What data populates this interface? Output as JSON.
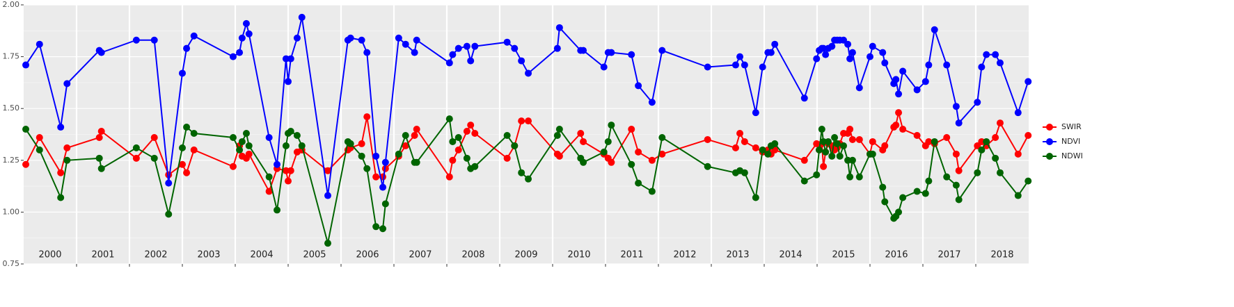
{
  "chart_data": {
    "type": "line",
    "x": [
      2000.04,
      2000.3,
      2000.7,
      2000.82,
      2001.43,
      2001.47,
      2002.13,
      2002.47,
      2002.74,
      2003.0,
      2003.08,
      2003.22,
      2003.96,
      2004.08,
      2004.13,
      2004.21,
      2004.26,
      2004.64,
      2004.79,
      2004.96,
      2005.0,
      2005.05,
      2005.17,
      2005.26,
      2005.75,
      2006.13,
      2006.18,
      2006.39,
      2006.49,
      2006.66,
      2006.79,
      2006.84,
      2007.09,
      2007.22,
      2007.39,
      2007.43,
      2008.05,
      2008.11,
      2008.22,
      2008.38,
      2008.45,
      2008.53,
      2009.14,
      2009.28,
      2009.41,
      2009.54,
      2010.09,
      2010.13,
      2010.53,
      2010.58,
      2010.97,
      2011.05,
      2011.11,
      2011.49,
      2011.62,
      2011.88,
      2012.07,
      2012.93,
      2013.46,
      2013.54,
      2013.63,
      2013.84,
      2013.97,
      2014.07,
      2014.13,
      2014.2,
      2014.76,
      2014.99,
      2015.04,
      2015.09,
      2015.12,
      2015.16,
      2015.21,
      2015.28,
      2015.33,
      2015.38,
      2015.43,
      2015.5,
      2015.58,
      2015.62,
      2015.67,
      2015.8,
      2016.0,
      2016.05,
      2016.24,
      2016.28,
      2016.45,
      2016.49,
      2016.54,
      2016.62,
      2016.89,
      2017.05,
      2017.11,
      2017.22,
      2017.45,
      2017.63,
      2017.68,
      2018.03,
      2018.11,
      2018.2,
      2018.37,
      2018.46,
      2018.8,
      2018.99
    ],
    "series": [
      {
        "name": "SWIR",
        "color": "#ff0000",
        "values": [
          1.23,
          1.36,
          1.19,
          1.31,
          1.36,
          1.39,
          1.26,
          1.36,
          1.18,
          1.23,
          1.19,
          1.3,
          1.22,
          1.32,
          1.27,
          1.26,
          1.28,
          1.1,
          1.21,
          1.2,
          1.15,
          1.2,
          1.29,
          1.3,
          1.2,
          1.3,
          1.31,
          1.33,
          1.46,
          1.17,
          1.17,
          1.21,
          1.27,
          1.32,
          1.37,
          1.4,
          1.17,
          1.25,
          1.3,
          1.39,
          1.42,
          1.38,
          1.26,
          1.32,
          1.44,
          1.44,
          1.28,
          1.27,
          1.38,
          1.34,
          1.28,
          1.26,
          1.24,
          1.4,
          1.29,
          1.25,
          1.28,
          1.35,
          1.31,
          1.38,
          1.34,
          1.31,
          1.29,
          1.3,
          1.28,
          1.3,
          1.25,
          1.33,
          1.3,
          1.33,
          1.22,
          1.29,
          1.33,
          1.32,
          1.3,
          1.31,
          1.33,
          1.38,
          1.38,
          1.4,
          1.35,
          1.35,
          1.28,
          1.34,
          1.3,
          1.32,
          1.41,
          1.42,
          1.48,
          1.4,
          1.37,
          1.32,
          1.34,
          1.33,
          1.36,
          1.28,
          1.2,
          1.32,
          1.34,
          1.32,
          1.36,
          1.43,
          1.28,
          1.37
        ]
      },
      {
        "name": "NDVI",
        "color": "#0000ff",
        "values": [
          1.71,
          1.81,
          1.41,
          1.62,
          1.78,
          1.77,
          1.83,
          1.83,
          1.14,
          1.67,
          1.79,
          1.85,
          1.75,
          1.77,
          1.84,
          1.91,
          1.86,
          1.36,
          1.23,
          1.74,
          1.63,
          1.74,
          1.84,
          1.94,
          1.08,
          1.83,
          1.84,
          1.83,
          1.77,
          1.27,
          1.12,
          1.24,
          1.84,
          1.81,
          1.77,
          1.83,
          1.72,
          1.76,
          1.79,
          1.8,
          1.73,
          1.8,
          1.82,
          1.79,
          1.73,
          1.67,
          1.79,
          1.89,
          1.78,
          1.78,
          1.7,
          1.77,
          1.77,
          1.76,
          1.61,
          1.53,
          1.78,
          1.7,
          1.71,
          1.75,
          1.71,
          1.48,
          1.7,
          1.77,
          1.77,
          1.81,
          1.55,
          1.74,
          1.78,
          1.79,
          1.79,
          1.76,
          1.79,
          1.8,
          1.83,
          1.83,
          1.83,
          1.83,
          1.81,
          1.74,
          1.77,
          1.6,
          1.75,
          1.8,
          1.77,
          1.72,
          1.62,
          1.64,
          1.57,
          1.68,
          1.59,
          1.63,
          1.71,
          1.88,
          1.71,
          1.51,
          1.43,
          1.53,
          1.7,
          1.76,
          1.76,
          1.72,
          1.48,
          1.63
        ]
      },
      {
        "name": "NDWI",
        "color": "#006400",
        "values": [
          1.4,
          1.3,
          1.07,
          1.25,
          1.26,
          1.21,
          1.31,
          1.26,
          0.99,
          1.31,
          1.41,
          1.38,
          1.36,
          1.3,
          1.34,
          1.38,
          1.32,
          1.17,
          1.01,
          1.32,
          1.38,
          1.39,
          1.37,
          1.32,
          0.85,
          1.34,
          1.33,
          1.27,
          1.21,
          0.93,
          0.92,
          1.04,
          1.28,
          1.37,
          1.24,
          1.24,
          1.45,
          1.34,
          1.36,
          1.26,
          1.21,
          1.22,
          1.37,
          1.32,
          1.19,
          1.16,
          1.37,
          1.4,
          1.26,
          1.24,
          1.29,
          1.34,
          1.42,
          1.23,
          1.14,
          1.1,
          1.36,
          1.22,
          1.19,
          1.2,
          1.19,
          1.07,
          1.3,
          1.28,
          1.32,
          1.33,
          1.15,
          1.18,
          1.3,
          1.4,
          1.34,
          1.29,
          1.34,
          1.27,
          1.36,
          1.33,
          1.27,
          1.32,
          1.25,
          1.17,
          1.25,
          1.17,
          1.28,
          1.28,
          1.12,
          1.05,
          0.97,
          0.98,
          1.0,
          1.07,
          1.1,
          1.09,
          1.15,
          1.34,
          1.17,
          1.13,
          1.06,
          1.19,
          1.3,
          1.34,
          1.26,
          1.19,
          1.08,
          1.15
        ]
      }
    ],
    "xlim": [
      2000,
      2019
    ],
    "xticks": [
      {
        "value": 2000.5,
        "label": "2000"
      },
      {
        "value": 2001.5,
        "label": "2001"
      },
      {
        "value": 2002.5,
        "label": "2002"
      },
      {
        "value": 2003.5,
        "label": "2003"
      },
      {
        "value": 2004.5,
        "label": "2004"
      },
      {
        "value": 2005.5,
        "label": "2005"
      },
      {
        "value": 2006.5,
        "label": "2006"
      },
      {
        "value": 2007.5,
        "label": "2007"
      },
      {
        "value": 2008.5,
        "label": "2008"
      },
      {
        "value": 2009.5,
        "label": "2009"
      },
      {
        "value": 2010.5,
        "label": "2010"
      },
      {
        "value": 2011.5,
        "label": "2011"
      },
      {
        "value": 2012.5,
        "label": "2012"
      },
      {
        "value": 2013.5,
        "label": "2013"
      },
      {
        "value": 2014.5,
        "label": "2014"
      },
      {
        "value": 2015.5,
        "label": "2015"
      },
      {
        "value": 2016.5,
        "label": "2016"
      },
      {
        "value": 2017.5,
        "label": "2017"
      },
      {
        "value": 2018.5,
        "label": "2018"
      }
    ],
    "xgrid": [
      2001,
      2002,
      2003,
      2004,
      2005,
      2006,
      2007,
      2008,
      2009,
      2010,
      2011,
      2012,
      2013,
      2014,
      2015,
      2016,
      2017,
      2018
    ],
    "ylim": [
      0.75,
      2.0
    ],
    "yticks": [
      0.75,
      {
        "value": 1.0,
        "label": "1.00"
      },
      1.25,
      {
        "value": 1.5,
        "label": "1.50"
      },
      1.75,
      {
        "value": 2.0,
        "label": "2.00"
      }
    ],
    "grid": true,
    "legend": "right"
  }
}
